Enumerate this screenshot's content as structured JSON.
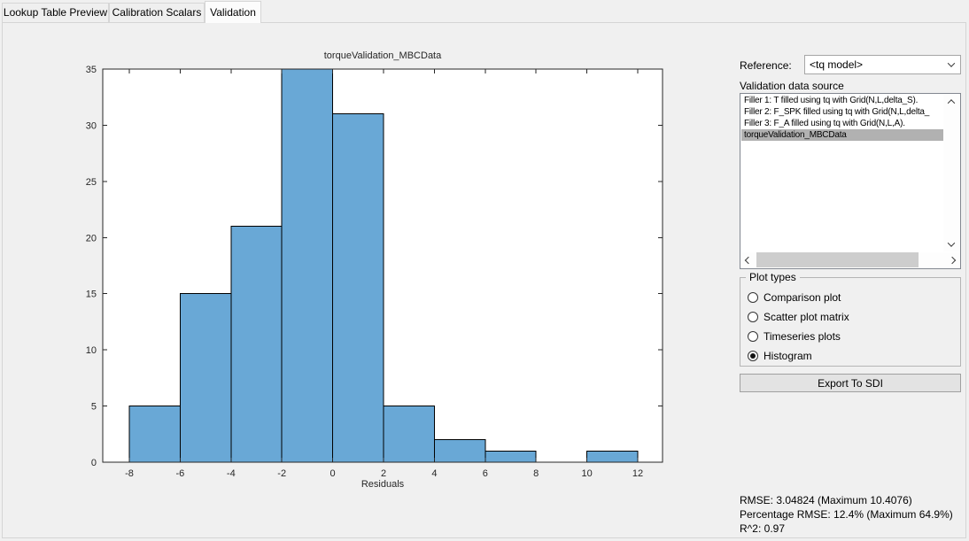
{
  "tabs": [
    {
      "label": "Lookup Table Preview",
      "active": false
    },
    {
      "label": "Calibration Scalars",
      "active": false
    },
    {
      "label": "Validation",
      "active": true
    }
  ],
  "reference": {
    "label": "Reference:",
    "value": "<tq model>",
    "dropdown_icon": "chevron-down-icon"
  },
  "validation_source": {
    "label": "Validation data source",
    "items": [
      "Filler 1: T filled using tq with Grid(N,L,delta_S).",
      "Filler 2: F_SPK filled using tq with Grid(N,L,delta_",
      "Filler 3: F_A filled using tq with Grid(N,L,A).",
      "torqueValidation_MBCData"
    ],
    "selected_index": 3,
    "selected_bg": "#b1b1b1"
  },
  "plot_types": {
    "label": "Plot types",
    "options": [
      {
        "label": "Comparison plot",
        "selected": false
      },
      {
        "label": "Scatter plot matrix",
        "selected": false
      },
      {
        "label": "Timeseries plots",
        "selected": false
      },
      {
        "label": "Histogram",
        "selected": true
      }
    ]
  },
  "export_button_label": "Export To SDI",
  "stats": {
    "rmse": "RMSE: 3.04824 (Maximum 10.4076)",
    "percentage_rmse": "Percentage RMSE: 12.4% (Maximum 64.9%)",
    "r_squared": "R^2: 0.97"
  },
  "chart_data": {
    "type": "bar",
    "subtype": "histogram",
    "title": "torqueValidation_MBCData",
    "xlabel": "Residuals",
    "ylabel": "",
    "bin_edges": [
      -8,
      -6,
      -4,
      -2,
      0,
      2,
      4,
      6,
      8,
      10,
      12
    ],
    "counts": [
      5,
      15,
      21,
      35,
      31,
      5,
      2,
      1,
      0,
      1
    ],
    "x_ticks": [
      -8,
      -6,
      -4,
      -2,
      0,
      2,
      4,
      6,
      8,
      10,
      12
    ],
    "y_ticks": [
      0,
      5,
      10,
      15,
      20,
      25,
      30,
      35
    ],
    "xlim": [
      -9,
      13
    ],
    "ylim": [
      0,
      35
    ],
    "grid": false,
    "legend": null,
    "bar_color": "#69a8d6",
    "bar_edge_color": "#000000",
    "axis_color": "#262626",
    "plot_bg": "#ffffff"
  }
}
